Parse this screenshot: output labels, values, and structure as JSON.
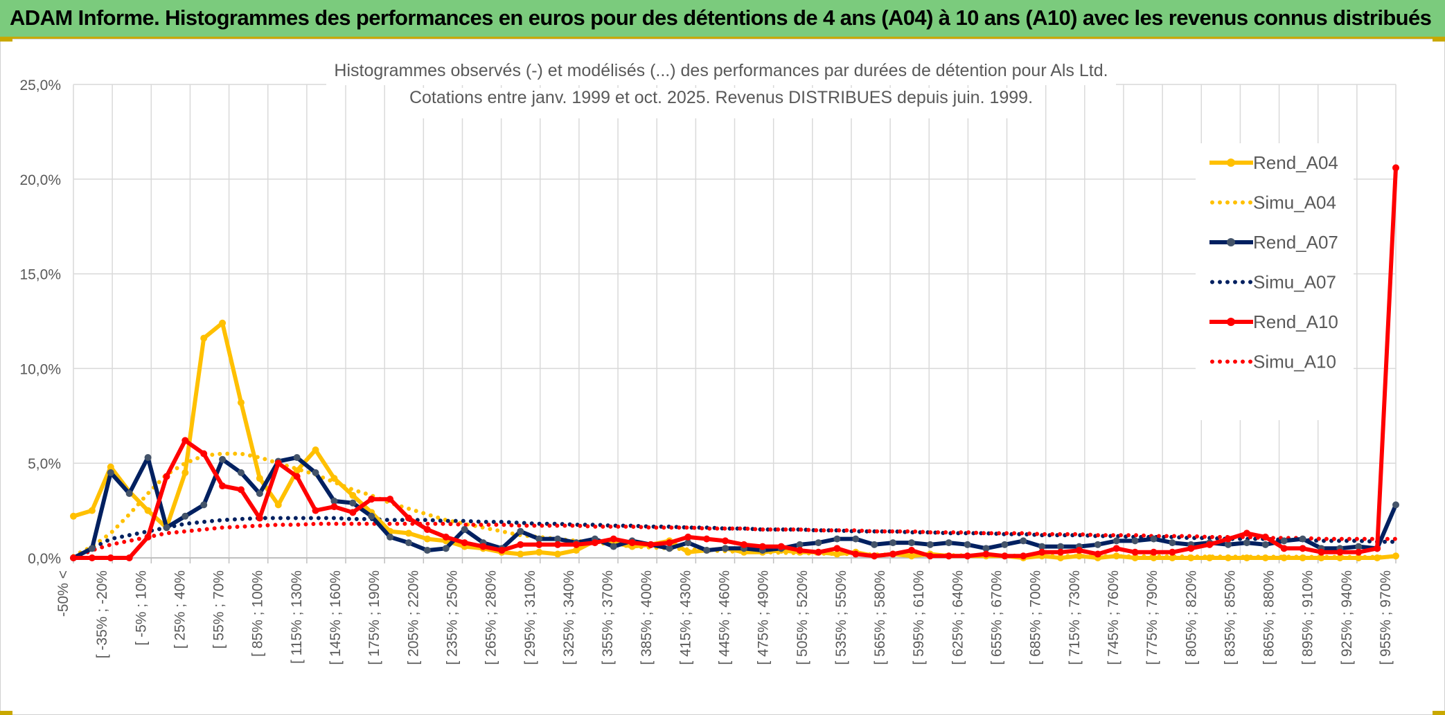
{
  "banner": {
    "title": "ADAM Informe. Histogrammes des performances en euros pour des détentions de 4 ans (A04) à 10 ans (A10) avec les revenus connus distribués"
  },
  "colors": {
    "a04": "#ffc000",
    "a07": "#002060",
    "a10": "#ff0000",
    "grid": "#d9d9d9",
    "text": "#595959",
    "banner_bg": "#7bcb7d"
  },
  "chart_data": {
    "type": "line",
    "title": "Histogrammes observés (-) et modélisés (...) des performances par durées de détention pour Als Ltd.",
    "subtitle": "Cotations entre janv. 1999 et oct. 2025. Revenus DISTRIBUES depuis juin. 1999.",
    "ylim": [
      0,
      25
    ],
    "yticks": [
      "0,0%",
      "5,0%",
      "10,0%",
      "15,0%",
      "20,0%",
      "25,0%"
    ],
    "legend_position": "right",
    "x_tick_labels": [
      "-50% <",
      "[ -35% ; -20%",
      "[ -5% ; 10%",
      "[ 25% ; 40%",
      "[ 55% ; 70%",
      "[ 85% ; 100%",
      "[ 115% ; 130%",
      "[ 145% ; 160%",
      "[ 175% ; 190%",
      "[ 205% ; 220%",
      "[ 235% ; 250%",
      "[ 265% ; 280%",
      "[ 295% ; 310%",
      "[ 325% ; 340%",
      "[ 355% ; 370%",
      "[ 385% ; 400%",
      "[ 415% ; 430%",
      "[ 445% ; 460%",
      "[ 475% ; 490%",
      "[ 505% ; 520%",
      "[ 535% ; 550%",
      "[ 565% ; 580%",
      "[ 595% ; 610%",
      "[ 625% ; 640%",
      "[ 655% ; 670%",
      "[ 685% ; 700%",
      "[ 715% ; 730%",
      "[ 745% ; 760%",
      "[ 775% ; 790%",
      "[ 805% ; 820%",
      "[ 835% ; 850%",
      "[ 865% ; 880%",
      "[ 895% ; 910%",
      "[ 925% ; 940%",
      "[ 955% ; 970%"
    ],
    "series": [
      {
        "name": "Rend_A04",
        "style": "solid",
        "color": "#ffc000",
        "values": [
          2.2,
          2.5,
          4.8,
          3.5,
          2.5,
          1.6,
          4.5,
          11.6,
          12.4,
          8.2,
          4.2,
          2.8,
          4.6,
          5.7,
          4.2,
          3.3,
          2.4,
          1.4,
          1.3,
          1.0,
          0.9,
          0.6,
          0.5,
          0.3,
          0.2,
          0.3,
          0.2,
          0.4,
          0.9,
          0.8,
          0.6,
          0.7,
          0.9,
          0.3,
          0.4,
          0.5,
          0.3,
          0.3,
          0.4,
          0.3,
          0.3,
          0.2,
          0.3,
          0.1,
          0.2,
          0.1,
          0.2,
          0.1,
          0.1,
          0.1,
          0.1,
          0.0,
          0.1,
          0.0,
          0.1,
          0.0,
          0.1,
          0.0,
          0.0,
          0.0,
          0.0,
          0.0,
          0.0,
          0.0,
          0.0,
          0.0,
          0.0,
          0.0,
          0.0,
          0.0,
          0.0,
          0.1
        ]
      },
      {
        "name": "Simu_A04",
        "style": "dotted",
        "color": "#ffc000",
        "values": [
          0.1,
          0.6,
          1.3,
          2.3,
          3.4,
          4.4,
          5.0,
          5.4,
          5.5,
          5.5,
          5.3,
          5.0,
          4.7,
          4.4,
          4.0,
          3.6,
          3.3,
          2.9,
          2.6,
          2.3,
          2.0,
          1.8,
          1.6,
          1.4,
          1.2,
          1.1,
          1.0,
          0.9,
          0.8,
          0.7,
          0.6,
          0.55,
          0.5,
          0.45,
          0.4,
          0.35,
          0.32,
          0.3,
          0.27,
          0.25,
          0.23,
          0.21,
          0.2,
          0.18,
          0.17,
          0.16,
          0.15,
          0.14,
          0.13,
          0.12,
          0.12,
          0.11,
          0.1,
          0.1,
          0.1,
          0.09,
          0.09,
          0.08,
          0.08,
          0.08,
          0.07,
          0.07,
          0.07,
          0.06,
          0.06,
          0.06,
          0.06,
          0.05,
          0.05,
          0.05,
          0.05,
          0.05
        ]
      },
      {
        "name": "Rend_A07",
        "style": "solid",
        "color": "#002060",
        "values": [
          0.0,
          0.5,
          4.5,
          3.4,
          5.3,
          1.6,
          2.2,
          2.8,
          5.2,
          4.5,
          3.4,
          5.1,
          5.3,
          4.5,
          3.0,
          2.9,
          2.2,
          1.1,
          0.8,
          0.4,
          0.5,
          1.5,
          0.8,
          0.5,
          1.4,
          1.0,
          1.0,
          0.8,
          1.0,
          0.6,
          0.9,
          0.7,
          0.5,
          0.8,
          0.4,
          0.5,
          0.5,
          0.4,
          0.5,
          0.7,
          0.8,
          1.0,
          1.0,
          0.7,
          0.8,
          0.8,
          0.7,
          0.8,
          0.7,
          0.5,
          0.7,
          0.9,
          0.6,
          0.6,
          0.6,
          0.7,
          0.9,
          0.9,
          1.0,
          0.8,
          0.7,
          0.8,
          0.7,
          0.8,
          0.7,
          0.9,
          1.0,
          0.5,
          0.5,
          0.6,
          0.5,
          2.8
        ]
      },
      {
        "name": "Simu_A07",
        "style": "dotted",
        "color": "#002060",
        "values": [
          0.0,
          0.5,
          1.0,
          1.2,
          1.4,
          1.6,
          1.8,
          1.9,
          2.0,
          2.05,
          2.1,
          2.1,
          2.1,
          2.1,
          2.1,
          2.05,
          2.05,
          2.0,
          2.0,
          2.0,
          1.95,
          1.95,
          1.9,
          1.9,
          1.85,
          1.8,
          1.8,
          1.75,
          1.75,
          1.7,
          1.7,
          1.65,
          1.65,
          1.6,
          1.6,
          1.55,
          1.55,
          1.5,
          1.5,
          1.5,
          1.45,
          1.45,
          1.4,
          1.4,
          1.4,
          1.35,
          1.35,
          1.3,
          1.3,
          1.3,
          1.25,
          1.25,
          1.2,
          1.2,
          1.2,
          1.15,
          1.15,
          1.1,
          1.1,
          1.1,
          1.05,
          1.05,
          1.0,
          1.0,
          1.0,
          0.95,
          0.95,
          0.9,
          0.9,
          0.9,
          0.85,
          0.85
        ]
      },
      {
        "name": "Rend_A10",
        "style": "solid",
        "color": "#ff0000",
        "values": [
          0.0,
          0.0,
          0.0,
          0.0,
          1.1,
          4.3,
          6.2,
          5.5,
          3.8,
          3.6,
          2.1,
          5.0,
          4.3,
          2.5,
          2.7,
          2.4,
          3.1,
          3.1,
          2.1,
          1.5,
          1.1,
          0.8,
          0.6,
          0.4,
          0.7,
          0.7,
          0.7,
          0.7,
          0.8,
          1.0,
          0.8,
          0.7,
          0.8,
          1.1,
          1.0,
          0.9,
          0.7,
          0.6,
          0.6,
          0.4,
          0.3,
          0.5,
          0.2,
          0.1,
          0.2,
          0.4,
          0.1,
          0.1,
          0.1,
          0.2,
          0.1,
          0.1,
          0.3,
          0.3,
          0.4,
          0.2,
          0.5,
          0.3,
          0.3,
          0.3,
          0.5,
          0.7,
          1.0,
          1.3,
          1.1,
          0.5,
          0.5,
          0.3,
          0.3,
          0.3,
          0.5,
          20.6
        ]
      },
      {
        "name": "Simu_A10",
        "style": "dotted",
        "color": "#ff0000",
        "values": [
          0.0,
          0.4,
          0.7,
          0.9,
          1.1,
          1.3,
          1.4,
          1.5,
          1.6,
          1.65,
          1.7,
          1.75,
          1.75,
          1.8,
          1.8,
          1.8,
          1.8,
          1.8,
          1.8,
          1.8,
          1.8,
          1.75,
          1.75,
          1.75,
          1.7,
          1.7,
          1.7,
          1.7,
          1.65,
          1.65,
          1.65,
          1.6,
          1.6,
          1.6,
          1.55,
          1.55,
          1.55,
          1.5,
          1.5,
          1.5,
          1.45,
          1.45,
          1.45,
          1.4,
          1.4,
          1.4,
          1.35,
          1.35,
          1.35,
          1.3,
          1.3,
          1.3,
          1.25,
          1.25,
          1.25,
          1.2,
          1.2,
          1.2,
          1.15,
          1.15,
          1.15,
          1.1,
          1.1,
          1.1,
          1.05,
          1.05,
          1.05,
          1.0,
          1.0,
          1.0,
          1.0,
          1.0
        ]
      }
    ]
  }
}
